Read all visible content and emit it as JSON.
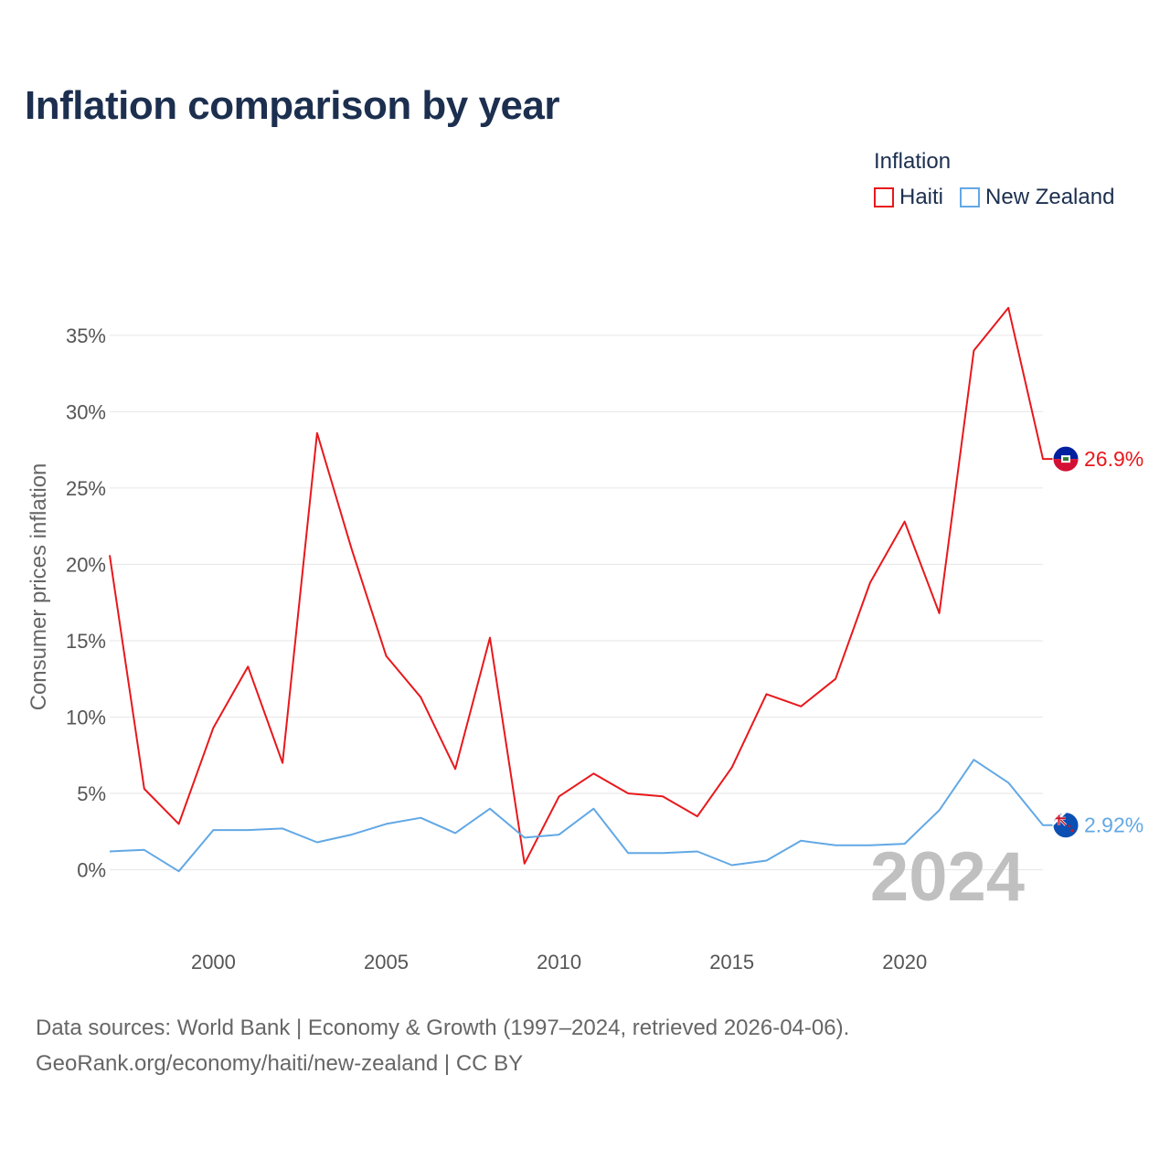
{
  "chart_data": {
    "type": "line",
    "title": "Inflation comparison by year",
    "xlabel": "",
    "ylabel": "Consumer prices inflation",
    "legend_title": "Inflation",
    "legend_position": "top-right",
    "x": [
      1997,
      1998,
      1999,
      2000,
      2001,
      2002,
      2003,
      2004,
      2005,
      2006,
      2007,
      2008,
      2009,
      2010,
      2011,
      2012,
      2013,
      2014,
      2015,
      2016,
      2017,
      2018,
      2019,
      2020,
      2021,
      2022,
      2023,
      2024
    ],
    "series": [
      {
        "name": "Haiti",
        "color": "#e8181c",
        "values": [
          20.6,
          5.3,
          3.0,
          9.3,
          13.3,
          7.0,
          28.6,
          21.0,
          14.0,
          11.3,
          6.6,
          15.2,
          0.4,
          4.8,
          6.3,
          5.0,
          4.8,
          3.5,
          6.7,
          11.5,
          10.7,
          12.5,
          18.8,
          22.8,
          16.8,
          34.0,
          36.8,
          26.9
        ],
        "end_label": "26.9%",
        "flag_icon": "haiti-flag-icon"
      },
      {
        "name": "New Zealand",
        "color": "#62a8e5",
        "values": [
          1.2,
          1.3,
          -0.1,
          2.6,
          2.6,
          2.7,
          1.8,
          2.3,
          3.0,
          3.4,
          2.4,
          4.0,
          2.1,
          2.3,
          4.0,
          1.1,
          1.1,
          1.2,
          0.3,
          0.6,
          1.9,
          1.6,
          1.6,
          1.7,
          3.9,
          7.2,
          5.7,
          2.92
        ],
        "end_label": "2.92%",
        "flag_icon": "new-zealand-flag-icon"
      }
    ],
    "ylim": [
      -3.5,
      39
    ],
    "xlim": [
      1997,
      2024.4
    ],
    "y_ticks": [
      0,
      5,
      10,
      15,
      20,
      25,
      30,
      35
    ],
    "y_tick_labels": [
      "0%",
      "5%",
      "10%",
      "15%",
      "20%",
      "25%",
      "30%",
      "35%"
    ],
    "x_ticks": [
      2000,
      2005,
      2010,
      2015,
      2020
    ],
    "x_tick_labels": [
      "2000",
      "2005",
      "2010",
      "2015",
      "2020"
    ],
    "grid": true,
    "year_watermark": "2024"
  },
  "footer": {
    "line1": "Data sources: World Bank | Economy & Growth (1997–2024, retrieved 2026-04-06).",
    "line2": "GeoRank.org/economy/haiti/new-zealand | CC BY"
  }
}
